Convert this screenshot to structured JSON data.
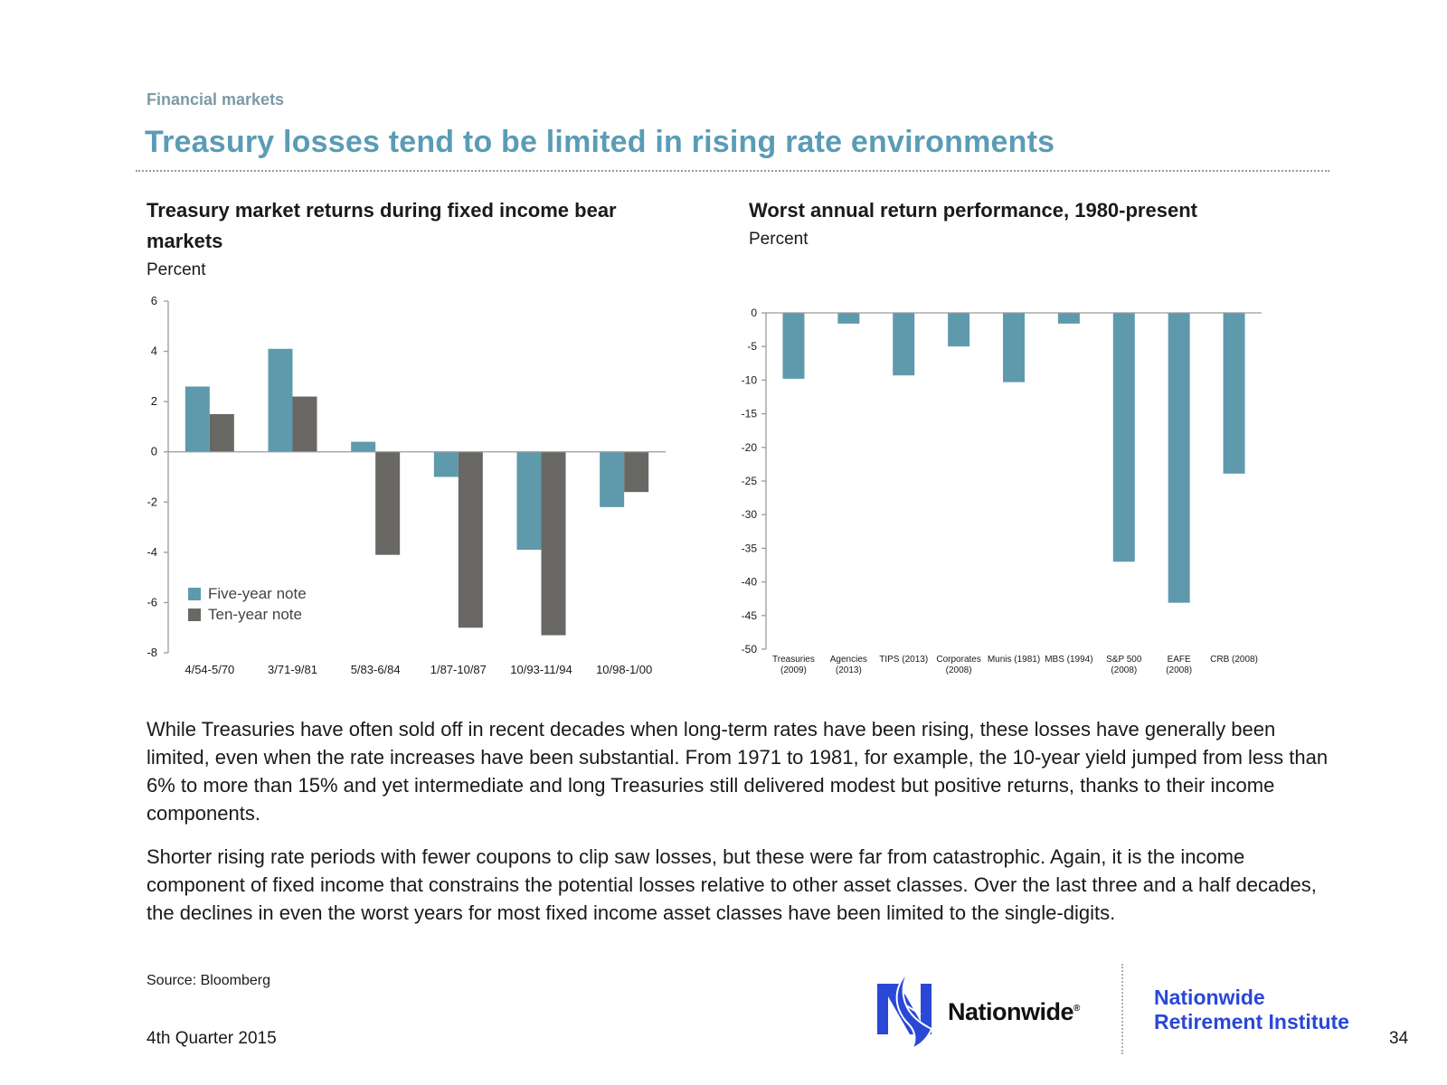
{
  "header": {
    "section": "Financial markets",
    "title": "Treasury losses tend to be limited in rising rate environments"
  },
  "left_chart": {
    "title": "Treasury market returns during fixed income bear markets",
    "unit": "Percent"
  },
  "right_chart": {
    "title": "Worst annual return performance, 1980-present",
    "unit": "Percent"
  },
  "chart_data": [
    {
      "type": "bar",
      "title": "Treasury market returns during fixed income bear markets",
      "ylabel": "Percent",
      "categories": [
        "4/54-5/70",
        "3/71-9/81",
        "5/83-6/84",
        "1/87-10/87",
        "10/93-11/94",
        "10/98-1/00"
      ],
      "series": [
        {
          "name": "Five-year note",
          "color": "#5f9aac",
          "values": [
            2.6,
            4.1,
            0.4,
            -1.0,
            -3.9,
            -2.2
          ]
        },
        {
          "name": "Ten-year note",
          "color": "#686764",
          "values": [
            1.5,
            2.2,
            -4.1,
            -7.0,
            -7.3,
            -1.6
          ]
        }
      ],
      "ylim": [
        -8,
        6
      ],
      "yticks": [
        6,
        4,
        2,
        0,
        -2,
        -4,
        -6,
        -8
      ],
      "legend": "bottom-left",
      "grid": false
    },
    {
      "type": "bar",
      "title": "Worst annual return performance, 1980-present",
      "ylabel": "Percent",
      "categories": [
        [
          "Treasuries",
          "(2009)"
        ],
        [
          "Agencies",
          "(2013)"
        ],
        [
          "TIPS (2013)"
        ],
        [
          "Corporates",
          "(2008)"
        ],
        [
          "Munis (1981)"
        ],
        [
          "MBS (1994)"
        ],
        [
          "S&P 500",
          "(2008)"
        ],
        [
          "EAFE",
          "(2008)"
        ],
        [
          "CRB (2008)"
        ]
      ],
      "series": [
        {
          "color": "#5f9aac",
          "values": [
            -9.8,
            -1.6,
            -9.3,
            -5.0,
            -10.3,
            -1.6,
            -37.0,
            -43.1,
            -23.9
          ]
        }
      ],
      "ylim": [
        -50,
        0
      ],
      "yticks": [
        0,
        -5,
        -10,
        -15,
        -20,
        -25,
        -30,
        -35,
        -40,
        -45,
        -50
      ],
      "legend": "none",
      "grid": false
    }
  ],
  "body": {
    "paragraph_1": "While Treasuries have often sold off in recent decades when long-term rates have been rising, these losses have generally been limited, even when the rate increases have been substantial. From 1971 to 1981, for example, the 10-year yield jumped from less than 6% to more than 15% and yet intermediate and long Treasuries still delivered modest but positive returns, thanks to their income components.",
    "paragraph_2": "Shorter rising rate periods with fewer coupons to clip saw losses, but these were far from catastrophic. Again, it is the income component of fixed income that constrains the potential losses relative to other asset classes. Over the last three and a half decades, the declines in even the worst years for most fixed income asset classes have been limited to the single-digits."
  },
  "footer": {
    "source": "Source: Bloomberg",
    "quarter": "4th Quarter 2015",
    "page_number": "34",
    "logo_wordmark": "Nationwide",
    "logo_registered": "®",
    "institute_line_1": "Nationwide",
    "institute_line_2": "Retirement Institute",
    "logo_icon": "eagle-n-icon",
    "brand_color": "#2a47d6"
  }
}
